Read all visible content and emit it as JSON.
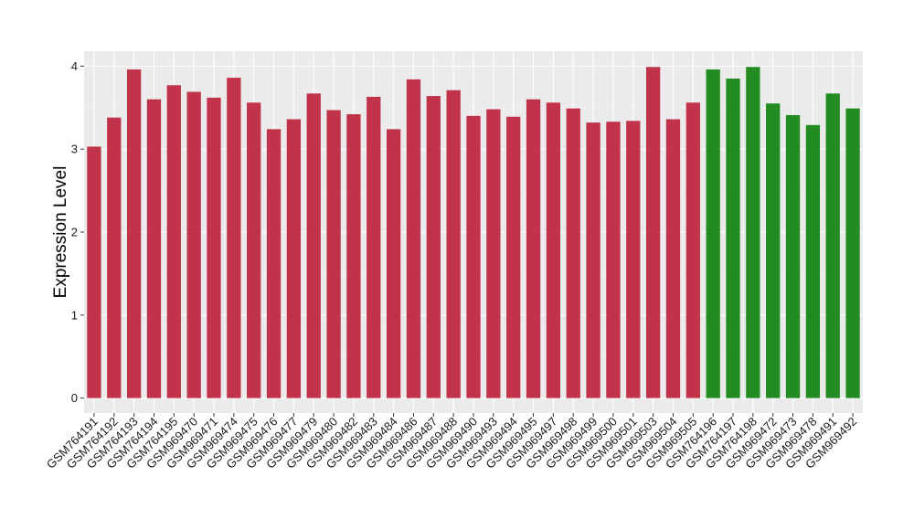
{
  "chart_data": {
    "type": "bar",
    "title": "",
    "xlabel": "",
    "ylabel": "Expression Level",
    "ylim": [
      -0.18,
      4.18
    ],
    "yticks": [
      0,
      1,
      2,
      3,
      4
    ],
    "ytick_labels": [
      "0",
      "1",
      "2",
      "3",
      "4"
    ],
    "grid": true,
    "legend": "none",
    "colors": {
      "panel_background": "#ebebeb",
      "grid_major": "#ffffff",
      "grid_minor": "#f5f5f5",
      "red": "#c1334a",
      "green": "#228b22"
    },
    "categories": [
      "GSM764191",
      "GSM764192",
      "GSM764193",
      "GSM764194",
      "GSM764195",
      "GSM969470",
      "GSM969471",
      "GSM969474",
      "GSM969475",
      "GSM969476",
      "GSM969477",
      "GSM969479",
      "GSM969480",
      "GSM969482",
      "GSM969483",
      "GSM969484",
      "GSM969486",
      "GSM969487",
      "GSM969488",
      "GSM969490",
      "GSM969493",
      "GSM969494",
      "GSM969495",
      "GSM969497",
      "GSM969498",
      "GSM969499",
      "GSM969500",
      "GSM969501",
      "GSM969503",
      "GSM969504",
      "GSM969505",
      "GSM764196",
      "GSM764197",
      "GSM764198",
      "GSM969472",
      "GSM969473",
      "GSM969478",
      "GSM969491",
      "GSM969492"
    ],
    "values": [
      3.03,
      3.38,
      3.96,
      3.6,
      3.77,
      3.69,
      3.62,
      3.86,
      3.56,
      3.24,
      3.36,
      3.67,
      3.47,
      3.42,
      3.63,
      3.24,
      3.84,
      3.64,
      3.71,
      3.4,
      3.48,
      3.39,
      3.6,
      3.56,
      3.49,
      3.32,
      3.33,
      3.34,
      3.99,
      3.36,
      3.56,
      3.96,
      3.85,
      3.99,
      3.55,
      3.41,
      3.29,
      3.67,
      3.49
    ],
    "bar_colors": [
      "#c1334a",
      "#c1334a",
      "#c1334a",
      "#c1334a",
      "#c1334a",
      "#c1334a",
      "#c1334a",
      "#c1334a",
      "#c1334a",
      "#c1334a",
      "#c1334a",
      "#c1334a",
      "#c1334a",
      "#c1334a",
      "#c1334a",
      "#c1334a",
      "#c1334a",
      "#c1334a",
      "#c1334a",
      "#c1334a",
      "#c1334a",
      "#c1334a",
      "#c1334a",
      "#c1334a",
      "#c1334a",
      "#c1334a",
      "#c1334a",
      "#c1334a",
      "#c1334a",
      "#c1334a",
      "#c1334a",
      "#228b22",
      "#228b22",
      "#228b22",
      "#228b22",
      "#228b22",
      "#228b22",
      "#228b22",
      "#228b22"
    ]
  }
}
